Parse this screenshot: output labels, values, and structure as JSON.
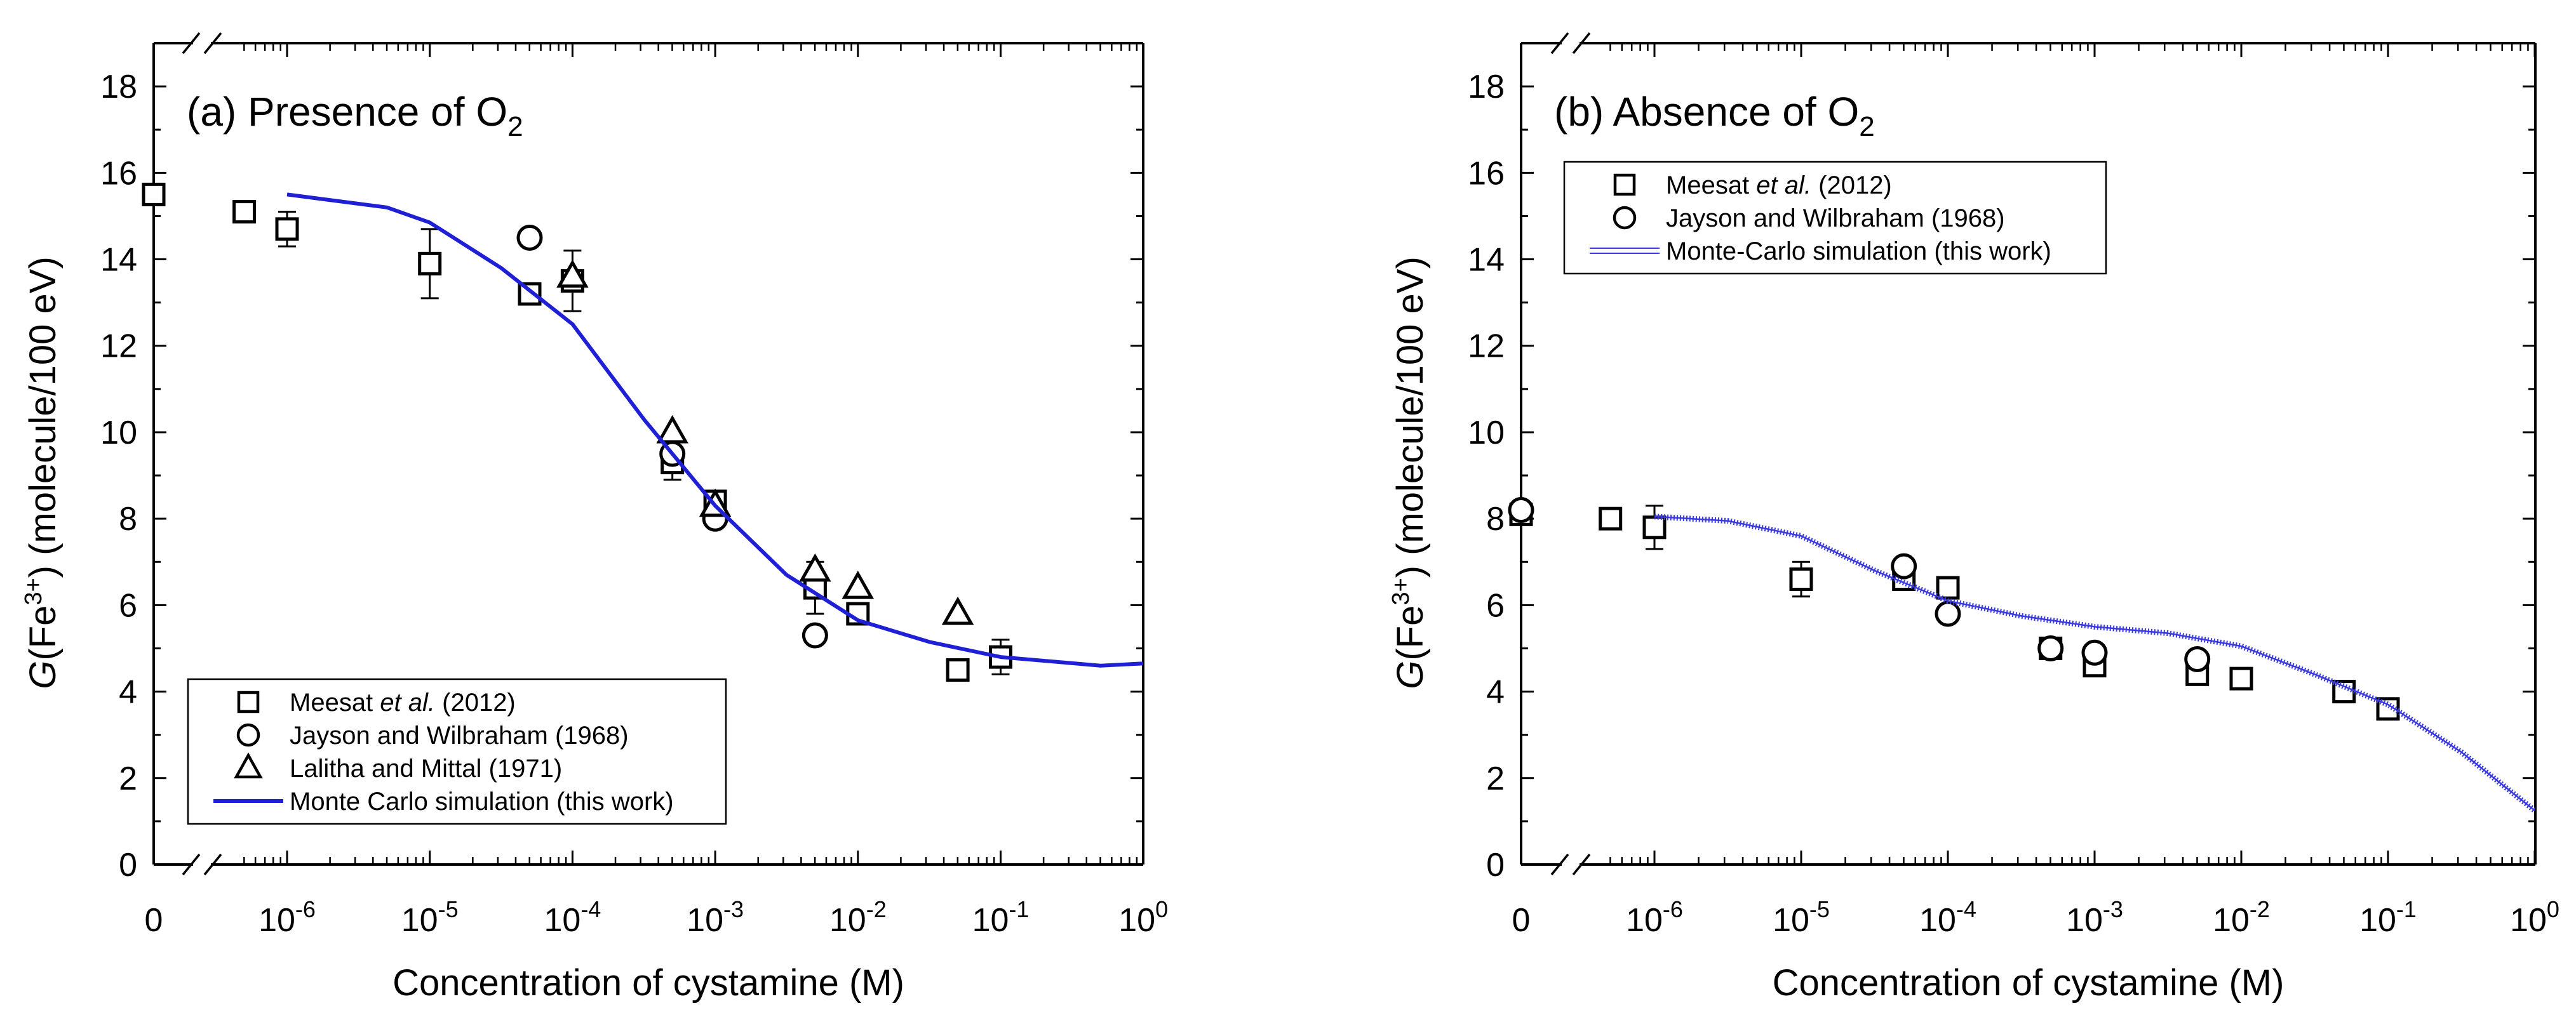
{
  "chart_data": [
    {
      "type": "scatter",
      "panel": "a",
      "title": "(a) Presence of O",
      "title_sub": "2",
      "xlabel": "Concentration of cystamine (M)",
      "ylabel": {
        "italic": "G",
        "mid": "(Fe",
        "sup": "3+",
        "end": ") (molecule/100 eV)"
      },
      "xscale": "log with axis break; leftmost point = 0",
      "xlim": [
        0,
        1
      ],
      "ylim": [
        0,
        19
      ],
      "yticks": [
        0,
        2,
        4,
        6,
        8,
        10,
        12,
        14,
        16,
        18
      ],
      "xticks": [
        {
          "mode": "zero",
          "base": "0",
          "exp": ""
        },
        {
          "mode": "log",
          "base": "10",
          "exp": "-6"
        },
        {
          "mode": "log",
          "base": "10",
          "exp": "-5"
        },
        {
          "mode": "log",
          "base": "10",
          "exp": "-4"
        },
        {
          "mode": "log",
          "base": "10",
          "exp": "-3"
        },
        {
          "mode": "log",
          "base": "10",
          "exp": "-2"
        },
        {
          "mode": "log",
          "base": "10",
          "exp": "-1"
        },
        {
          "mode": "log",
          "base": "10",
          "exp": "0"
        }
      ],
      "legend_position": "bottom-left",
      "series": [
        {
          "name": "Meesat et al. (2012)",
          "name_pre": "Meesat ",
          "name_italic": "et al.",
          "name_post": " (2012)",
          "marker": "square",
          "points": [
            {
              "mode": "zero",
              "x": 0,
              "y": 15.5
            },
            {
              "mode": "log",
              "x": -6.3,
              "y": 15.1
            },
            {
              "mode": "log",
              "x": -6,
              "y": 14.7,
              "err": 0.4
            },
            {
              "mode": "log",
              "x": -5,
              "y": 13.9,
              "err": 0.8
            },
            {
              "mode": "log",
              "x": -4.3,
              "y": 13.2
            },
            {
              "mode": "log",
              "x": -4,
              "y": 13.5,
              "err": 0.7
            },
            {
              "mode": "log",
              "x": -3.3,
              "y": 9.3,
              "err": 0.4
            },
            {
              "mode": "log",
              "x": -3,
              "y": 8.4
            },
            {
              "mode": "log",
              "x": -2.3,
              "y": 6.4,
              "err": 0.6
            },
            {
              "mode": "log",
              "x": -2,
              "y": 5.8
            },
            {
              "mode": "log",
              "x": -1.3,
              "y": 4.5
            },
            {
              "mode": "log",
              "x": -1,
              "y": 4.8,
              "err": 0.4
            }
          ]
        },
        {
          "name": "Jayson and Wilbraham (1968)",
          "marker": "circle",
          "points": [
            {
              "mode": "log",
              "x": -4.3,
              "y": 14.5
            },
            {
              "mode": "log",
              "x": -3.3,
              "y": 9.5
            },
            {
              "mode": "log",
              "x": -3,
              "y": 8.0
            },
            {
              "mode": "log",
              "x": -2.3,
              "y": 5.3
            }
          ]
        },
        {
          "name": "Lalitha and Mittal (1971)",
          "marker": "triangle",
          "points": [
            {
              "mode": "log",
              "x": -4,
              "y": 13.6
            },
            {
              "mode": "log",
              "x": -3.3,
              "y": 10.0
            },
            {
              "mode": "log",
              "x": -3,
              "y": 8.3
            },
            {
              "mode": "log",
              "x": -2.3,
              "y": 6.8
            },
            {
              "mode": "log",
              "x": -2,
              "y": 6.4
            },
            {
              "mode": "log",
              "x": -1.3,
              "y": 5.8
            }
          ]
        },
        {
          "name": "Monte Carlo simulation (this work)",
          "marker": "line",
          "color": "#1f1fd6",
          "points": [
            {
              "mode": "log",
              "x": -6,
              "y": 15.5
            },
            {
              "mode": "log",
              "x": -5.3,
              "y": 15.2
            },
            {
              "mode": "log",
              "x": -5,
              "y": 14.85
            },
            {
              "mode": "log",
              "x": -4.5,
              "y": 13.8
            },
            {
              "mode": "log",
              "x": -4,
              "y": 12.5
            },
            {
              "mode": "log",
              "x": -3.5,
              "y": 10.3
            },
            {
              "mode": "log",
              "x": -3,
              "y": 8.3
            },
            {
              "mode": "log",
              "x": -2.5,
              "y": 6.7
            },
            {
              "mode": "log",
              "x": -2,
              "y": 5.65
            },
            {
              "mode": "log",
              "x": -1.5,
              "y": 5.15
            },
            {
              "mode": "log",
              "x": -1,
              "y": 4.8
            },
            {
              "mode": "log",
              "x": -0.3,
              "y": 4.6
            },
            {
              "mode": "log",
              "x": 0,
              "y": 4.65
            }
          ]
        }
      ]
    },
    {
      "type": "scatter",
      "panel": "b",
      "title": "(b) Absence of O",
      "title_sub": "2",
      "xlabel": "Concentration of cystamine (M)",
      "ylabel": {
        "italic": "G",
        "mid": "(Fe",
        "sup": "3+",
        "end": ") (molecule/100 eV)"
      },
      "xscale": "log with axis break; leftmost point = 0",
      "xlim": [
        0,
        1
      ],
      "ylim": [
        0,
        19
      ],
      "yticks": [
        0,
        2,
        4,
        6,
        8,
        10,
        12,
        14,
        16,
        18
      ],
      "xticks": [
        {
          "mode": "zero",
          "base": "0",
          "exp": ""
        },
        {
          "mode": "log",
          "base": "10",
          "exp": "-6"
        },
        {
          "mode": "log",
          "base": "10",
          "exp": "-5"
        },
        {
          "mode": "log",
          "base": "10",
          "exp": "-4"
        },
        {
          "mode": "log",
          "base": "10",
          "exp": "-3"
        },
        {
          "mode": "log",
          "base": "10",
          "exp": "-2"
        },
        {
          "mode": "log",
          "base": "10",
          "exp": "-1"
        },
        {
          "mode": "log",
          "base": "10",
          "exp": "0"
        }
      ],
      "legend_position": "top-left",
      "series": [
        {
          "name": "Meesat et al. (2012)",
          "name_pre": "Meesat ",
          "name_italic": "et al.",
          "name_post": " (2012)",
          "marker": "square",
          "points": [
            {
              "mode": "zero",
              "x": 0,
              "y": 8.1
            },
            {
              "mode": "log",
              "x": -6.3,
              "y": 8.0
            },
            {
              "mode": "log",
              "x": -6,
              "y": 7.8,
              "err": 0.5
            },
            {
              "mode": "log",
              "x": -5,
              "y": 6.6,
              "err": 0.4
            },
            {
              "mode": "log",
              "x": -4.3,
              "y": 6.6
            },
            {
              "mode": "log",
              "x": -4,
              "y": 6.4
            },
            {
              "mode": "log",
              "x": -3.3,
              "y": 5.0
            },
            {
              "mode": "log",
              "x": -3,
              "y": 4.6
            },
            {
              "mode": "log",
              "x": -2.3,
              "y": 4.4
            },
            {
              "mode": "log",
              "x": -2,
              "y": 4.3
            },
            {
              "mode": "log",
              "x": -1.3,
              "y": 4.0
            },
            {
              "mode": "log",
              "x": -1,
              "y": 3.6
            }
          ]
        },
        {
          "name": "Jayson and Wilbraham (1968)",
          "marker": "circle",
          "points": [
            {
              "mode": "zero",
              "x": 0,
              "y": 8.2
            },
            {
              "mode": "log",
              "x": -4.3,
              "y": 6.9
            },
            {
              "mode": "log",
              "x": -4,
              "y": 5.8
            },
            {
              "mode": "log",
              "x": -3.3,
              "y": 5.0
            },
            {
              "mode": "log",
              "x": -3,
              "y": 4.9
            },
            {
              "mode": "log",
              "x": -2.3,
              "y": 4.75
            }
          ]
        },
        {
          "name": "Monte-Carlo simulation (this work)",
          "marker": "band",
          "color": "#3a3ae0",
          "points": [
            {
              "mode": "log",
              "x": -6,
              "y": 8.05
            },
            {
              "mode": "log",
              "x": -5.5,
              "y": 7.95
            },
            {
              "mode": "log",
              "x": -5,
              "y": 7.6
            },
            {
              "mode": "log",
              "x": -4.5,
              "y": 6.8
            },
            {
              "mode": "log",
              "x": -4,
              "y": 6.1
            },
            {
              "mode": "log",
              "x": -3.5,
              "y": 5.75
            },
            {
              "mode": "log",
              "x": -3,
              "y": 5.5
            },
            {
              "mode": "log",
              "x": -2.5,
              "y": 5.35
            },
            {
              "mode": "log",
              "x": -2,
              "y": 5.05
            },
            {
              "mode": "log",
              "x": -1.5,
              "y": 4.4
            },
            {
              "mode": "log",
              "x": -1,
              "y": 3.7
            },
            {
              "mode": "log",
              "x": -0.5,
              "y": 2.6
            },
            {
              "mode": "log",
              "x": 0,
              "y": 1.25
            }
          ]
        }
      ]
    }
  ]
}
